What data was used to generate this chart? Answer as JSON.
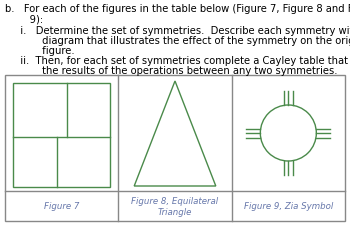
{
  "bg_color": "#ffffff",
  "text_color_body": "#000000",
  "text_color_label": "#6677aa",
  "green": "#4a8a4a",
  "gray": "#888888",
  "lw": 1.0,
  "label1": "Figure 7",
  "label2": "Figure 8, Equilateral\nTriangle",
  "label3": "Figure 9, Zia Symbol",
  "text_fs": 7.2,
  "label_fs": 6.2
}
